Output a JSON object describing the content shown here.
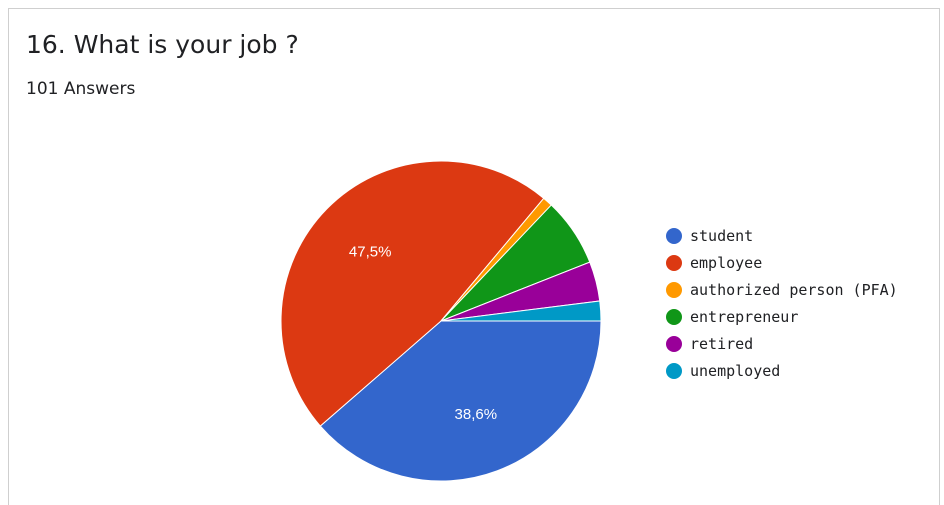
{
  "question": {
    "title": "16. What is your job ?",
    "answers_count": "101 Answers"
  },
  "chart_data": {
    "type": "pie",
    "categories": [
      "student",
      "employee",
      "authorized person (PFA)",
      "entrepreneur",
      "retired",
      "unemployed"
    ],
    "values": [
      38.6,
      47.5,
      1.0,
      6.9,
      4.0,
      2.0
    ],
    "colors": [
      "#3366cc",
      "#dc3912",
      "#ff9900",
      "#109618",
      "#990099",
      "#0099c6"
    ],
    "slice_labels": [
      "38,6%",
      "47,5%",
      "",
      "",
      "",
      ""
    ],
    "legend_position": "right"
  }
}
